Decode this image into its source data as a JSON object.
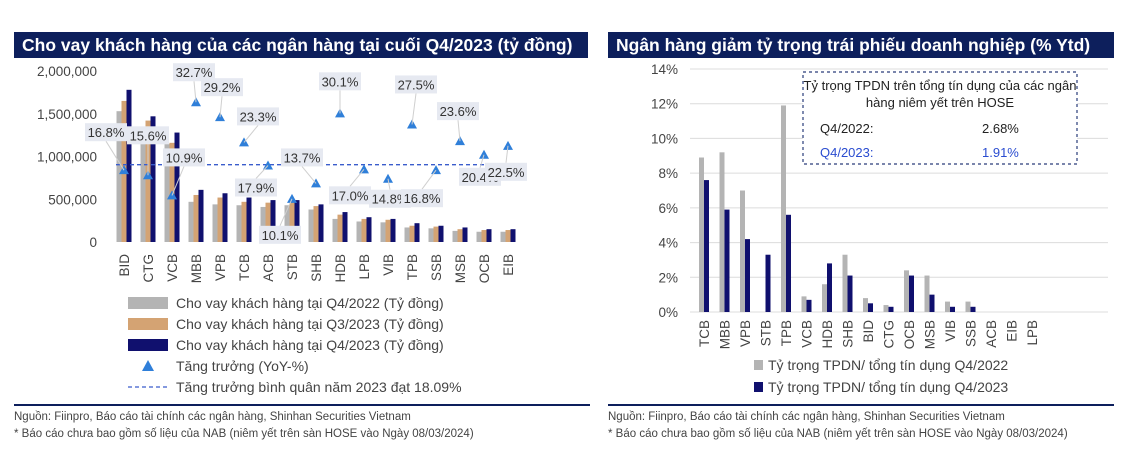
{
  "left": {
    "title": "Cho vay khách hàng của các ngân hàng tại cuối Q4/2023 (tỷ đồng)",
    "source": "Nguồn: Fiinpro, Báo cáo tài chính các ngân hàng, Shinhan Securities Vietnam",
    "note": "* Báo cáo chưa bao gồm số liệu của NAB (niêm yết trên sàn HOSE vào Ngày  08/03/2024)"
  },
  "right": {
    "title": "Ngân hàng giảm tỷ trọng trái phiếu doanh nghiệp (% Ytd)",
    "source": "Nguồn: Fiinpro, Báo cáo tài chính các ngân hàng, Shinhan Securities Vietnam",
    "note": "* Báo cáo chưa bao gồm số liệu của NAB (niêm yết trên sàn HOSE vào Ngày  08/03/2024)",
    "box": {
      "title_line1": "Tỷ trọng TPDN trên tổng tín dụng của các ngân",
      "title_line2": "hàng niêm yết trên HOSE",
      "row1_label": "Q4/2022:",
      "row1_value": "2.68%",
      "row2_label": "Q4/2023:",
      "row2_value": "1.91%"
    }
  },
  "colors": {
    "gray": "#b4b4b4",
    "tan": "#d4a373",
    "navy": "#10106e",
    "triangle": "#2f7fd9",
    "dash": "#3a5ccc",
    "header": "#0d1f5c"
  },
  "chart_data": [
    {
      "type": "bar",
      "title": "Cho vay khách hàng của các ngân hàng tại cuối Q4/2023 (tỷ đồng)",
      "categories": [
        "BID",
        "CTG",
        "VCB",
        "MBB",
        "VPB",
        "TCB",
        "ACB",
        "STB",
        "SHB",
        "HDB",
        "LPB",
        "VIB",
        "TPB",
        "SSB",
        "MSB",
        "OCB",
        "EIB"
      ],
      "yticks": [
        "2,000,000",
        "1,500,000",
        "1,000,000",
        "500,000",
        "0"
      ],
      "ylim": [
        0,
        2000000
      ],
      "series": [
        {
          "name": "Cho vay khách hàng tại Q4/2022 (Tỷ đồng)",
          "values": [
            1530000,
            1240000,
            1150000,
            470000,
            440000,
            430000,
            410000,
            430000,
            380000,
            270000,
            240000,
            230000,
            170000,
            160000,
            130000,
            120000,
            120000
          ]
        },
        {
          "name": "Cho vay khách hàng tại Q3/2023 (Tỷ đồng)",
          "values": [
            1650000,
            1420000,
            1160000,
            550000,
            520000,
            470000,
            460000,
            470000,
            420000,
            320000,
            270000,
            260000,
            190000,
            180000,
            150000,
            140000,
            140000
          ]
        },
        {
          "name": "Cho vay khách hàng tại Q4/2023 (Tỷ đồng)",
          "values": [
            1780000,
            1470000,
            1280000,
            610000,
            570000,
            520000,
            490000,
            490000,
            440000,
            350000,
            290000,
            270000,
            220000,
            190000,
            170000,
            150000,
            150000
          ]
        }
      ],
      "growth": {
        "name": "Tăng trưởng (YoY-%)",
        "values": [
          16.8,
          15.6,
          10.9,
          32.7,
          29.2,
          23.3,
          17.9,
          10.1,
          13.7,
          30.1,
          17.0,
          14.8,
          27.5,
          16.8,
          23.6,
          20.4,
          22.5
        ],
        "labels": [
          "16.8%",
          "15.6%",
          "10.9%",
          "32.7%",
          "29.2%",
          "23.3%",
          "17.9%",
          "10.1%",
          "13.7%",
          "30.1%",
          "17.0%",
          "14.8%",
          "27.5%",
          "16.8%",
          "23.6%",
          "20.4%",
          "22.5%"
        ]
      },
      "average": {
        "name": "Tăng trưởng bình quân năm 2023 đạt 18.09%",
        "value": 18.09
      }
    },
    {
      "type": "bar",
      "title": "Ngân hàng giảm tỷ trọng trái phiếu doanh nghiệp (% Ytd)",
      "categories": [
        "TCB",
        "MBB",
        "VPB",
        "STB",
        "TPB",
        "VCB",
        "HDB",
        "SHB",
        "BID",
        "CTG",
        "OCB",
        "MSB",
        "VIB",
        "SSB",
        "ACB",
        "EIB",
        "LPB"
      ],
      "yticks": [
        "14%",
        "12%",
        "10%",
        "8%",
        "6%",
        "4%",
        "2%",
        "0%"
      ],
      "ylim": [
        0,
        14
      ],
      "series": [
        {
          "name": "Tỷ trọng TPDN/ tổng tín dụng Q4/2022",
          "values": [
            8.9,
            9.2,
            7.0,
            0,
            11.9,
            0.9,
            1.6,
            3.3,
            0.8,
            0.4,
            2.4,
            2.1,
            0.6,
            0.6,
            0,
            0,
            0
          ]
        },
        {
          "name": "Tỷ trọng TPDN/ tổng tín dụng Q4/2023",
          "values": [
            7.6,
            5.9,
            4.2,
            3.3,
            5.6,
            0.7,
            2.8,
            2.1,
            0.5,
            0.3,
            2.1,
            1.0,
            0.3,
            0.3,
            0,
            0,
            0
          ]
        }
      ]
    }
  ]
}
